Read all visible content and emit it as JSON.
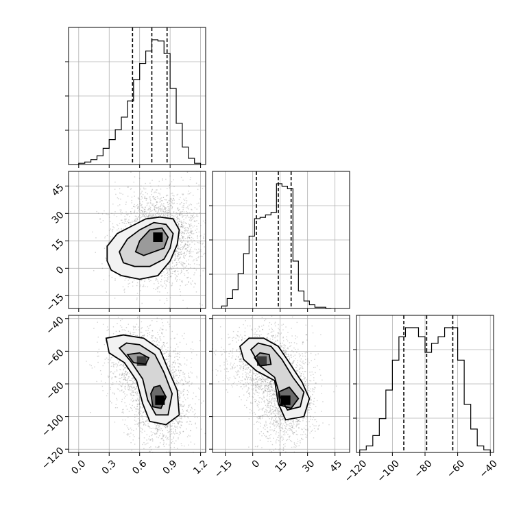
{
  "chart_data": {
    "type": "corner",
    "parameters": [
      {
        "range": [
          -0.1,
          1.25
        ],
        "ticks": [
          0.0,
          0.3,
          0.6,
          0.9,
          1.2
        ],
        "tick_labels": [
          "0.0",
          "0.3",
          "0.6",
          "0.9",
          "1.2"
        ],
        "quantiles": [
          0.53,
          0.72,
          0.87
        ],
        "hist_edges": [
          0.0,
          0.06,
          0.12,
          0.18,
          0.24,
          0.3,
          0.36,
          0.42,
          0.48,
          0.54,
          0.6,
          0.66,
          0.72,
          0.78,
          0.84,
          0.9,
          0.96,
          1.02,
          1.08,
          1.14,
          1.2
        ],
        "hist_counts": [
          1,
          2,
          4,
          7,
          13,
          20,
          28,
          38,
          51,
          68,
          81,
          91,
          100,
          99,
          89,
          61,
          33,
          14,
          5,
          1
        ]
      },
      {
        "range": [
          -22,
          53
        ],
        "ticks": [
          -15,
          0,
          15,
          30,
          45
        ],
        "tick_labels": [
          "−15",
          "0",
          "15",
          "30",
          "45"
        ],
        "quantiles": [
          2,
          14,
          21
        ],
        "hist_edges": [
          -17,
          -14,
          -11,
          -8,
          -5,
          -2,
          1,
          4,
          7,
          10,
          13,
          16,
          19,
          22,
          25,
          28,
          31,
          34,
          37,
          40,
          43
        ],
        "hist_counts": [
          2,
          8,
          15,
          28,
          44,
          58,
          72,
          73,
          75,
          77,
          100,
          98,
          96,
          38,
          14,
          6,
          3,
          1,
          1,
          0
        ]
      },
      {
        "range": [
          -122,
          -38
        ],
        "ticks": [
          -120,
          -100,
          -80,
          -60,
          -40
        ],
        "tick_labels": [
          "−120",
          "−100",
          "−80",
          "−60",
          "−40"
        ],
        "quantiles": [
          -93,
          -79,
          -63
        ],
        "hist_edges": [
          -120,
          -116,
          -112,
          -108,
          -104,
          -100,
          -96,
          -92,
          -88,
          -84,
          -80,
          -76,
          -72,
          -68,
          -64,
          -60,
          -56,
          -52,
          -48,
          -44,
          -40
        ],
        "hist_counts": [
          2,
          5,
          13,
          26,
          48,
          71,
          89,
          96,
          96,
          89,
          77,
          84,
          89,
          96,
          96,
          71,
          37,
          18,
          5,
          2
        ]
      }
    ],
    "pairs": [
      {
        "row": 1,
        "col": 0,
        "modes": [
          {
            "x": 0.78,
            "y": 17,
            "sx": 0.13,
            "sy": 8,
            "w": 1.0
          }
        ],
        "contours": [
          [
            [
              0.32,
              -1
            ],
            [
              0.28,
              4
            ],
            [
              0.28,
              12
            ],
            [
              0.38,
              19
            ],
            [
              0.52,
              23
            ],
            [
              0.66,
              27
            ],
            [
              0.8,
              28
            ],
            [
              0.93,
              27
            ],
            [
              0.99,
              21
            ],
            [
              0.97,
              13
            ],
            [
              0.9,
              4
            ],
            [
              0.78,
              -4
            ],
            [
              0.6,
              -6
            ],
            [
              0.42,
              -4
            ]
          ],
          [
            [
              0.44,
              3
            ],
            [
              0.4,
              9
            ],
            [
              0.48,
              16
            ],
            [
              0.6,
              21
            ],
            [
              0.74,
              25
            ],
            [
              0.86,
              24
            ],
            [
              0.93,
              19
            ],
            [
              0.9,
              11
            ],
            [
              0.84,
              5
            ],
            [
              0.7,
              1
            ],
            [
              0.55,
              1
            ]
          ],
          [
            [
              0.56,
              9
            ],
            [
              0.6,
              15
            ],
            [
              0.7,
              21
            ],
            [
              0.82,
              22
            ],
            [
              0.88,
              17
            ],
            [
              0.84,
              11
            ],
            [
              0.74,
              9
            ],
            [
              0.64,
              7
            ]
          ]
        ]
      },
      {
        "row": 2,
        "col": 0,
        "modes": [
          {
            "x": 0.62,
            "y": -66,
            "sx": 0.11,
            "sy": 7,
            "w": 0.8
          },
          {
            "x": 0.8,
            "y": -90,
            "sx": 0.1,
            "sy": 9,
            "w": 1.0
          }
        ],
        "contours": [
          [
            [
              0.27,
              -52
            ],
            [
              0.3,
              -61
            ],
            [
              0.45,
              -67
            ],
            [
              0.57,
              -78
            ],
            [
              0.63,
              -92
            ],
            [
              0.7,
              -103
            ],
            [
              0.86,
              -105
            ],
            [
              0.99,
              -99
            ],
            [
              0.97,
              -84
            ],
            [
              0.88,
              -71
            ],
            [
              0.8,
              -59
            ],
            [
              0.64,
              -52
            ],
            [
              0.44,
              -50
            ]
          ],
          [
            [
              0.4,
              -58
            ],
            [
              0.51,
              -66
            ],
            [
              0.63,
              -77
            ],
            [
              0.68,
              -90
            ],
            [
              0.76,
              -99
            ],
            [
              0.88,
              -99
            ],
            [
              0.92,
              -86
            ],
            [
              0.84,
              -73
            ],
            [
              0.75,
              -62
            ],
            [
              0.6,
              -56
            ],
            [
              0.47,
              -55
            ]
          ],
          [
            [
              0.48,
              -62
            ],
            [
              0.54,
              -67
            ],
            [
              0.66,
              -68
            ],
            [
              0.69,
              -64
            ],
            [
              0.6,
              -61
            ]
          ],
          [
            [
              0.71,
              -86
            ],
            [
              0.73,
              -94
            ],
            [
              0.81,
              -95
            ],
            [
              0.86,
              -88
            ],
            [
              0.8,
              -81
            ],
            [
              0.74,
              -82
            ]
          ]
        ]
      },
      {
        "row": 2,
        "col": 1,
        "modes": [
          {
            "x": 5,
            "y": -66,
            "sx": 6,
            "sy": 7,
            "w": 0.8
          },
          {
            "x": 18,
            "y": -90,
            "sx": 5,
            "sy": 9,
            "w": 1.0
          }
        ],
        "contours": [
          [
            [
              -7,
              -57
            ],
            [
              -5,
              -65
            ],
            [
              2,
              -72
            ],
            [
              12,
              -78
            ],
            [
              14,
              -92
            ],
            [
              18,
              -102
            ],
            [
              28,
              -100
            ],
            [
              31,
              -89
            ],
            [
              27,
              -79
            ],
            [
              20,
              -67
            ],
            [
              14,
              -57
            ],
            [
              6,
              -52
            ],
            [
              -2,
              -52
            ]
          ],
          [
            [
              -1,
              -59
            ],
            [
              4,
              -69
            ],
            [
              12,
              -76
            ],
            [
              15,
              -88
            ],
            [
              19,
              -96
            ],
            [
              26,
              -94
            ],
            [
              28,
              -85
            ],
            [
              22,
              -76
            ],
            [
              16,
              -65
            ],
            [
              10,
              -57
            ],
            [
              3,
              -55
            ]
          ],
          [
            [
              1,
              -64
            ],
            [
              4,
              -69
            ],
            [
              10,
              -68
            ],
            [
              9,
              -62
            ],
            [
              4,
              -61
            ]
          ],
          [
            [
              14,
              -85
            ],
            [
              15,
              -93
            ],
            [
              21,
              -95
            ],
            [
              25,
              -89
            ],
            [
              20,
              -82
            ]
          ]
        ]
      }
    ]
  }
}
